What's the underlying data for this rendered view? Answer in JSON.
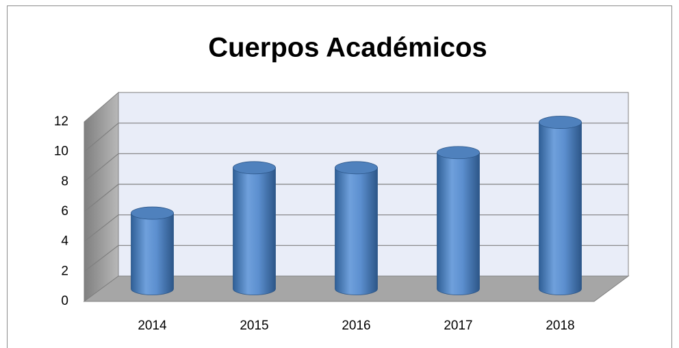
{
  "chart_data": {
    "type": "bar",
    "title": "Cuerpos Académicos",
    "categories": [
      "2014",
      "2015",
      "2016",
      "2017",
      "2018"
    ],
    "values": [
      5,
      8,
      8,
      9,
      11
    ],
    "color": "#4f81bd",
    "ylim": [
      0,
      12
    ],
    "yticks": [
      0,
      2,
      4,
      6,
      8,
      10,
      12
    ],
    "grid": true
  }
}
